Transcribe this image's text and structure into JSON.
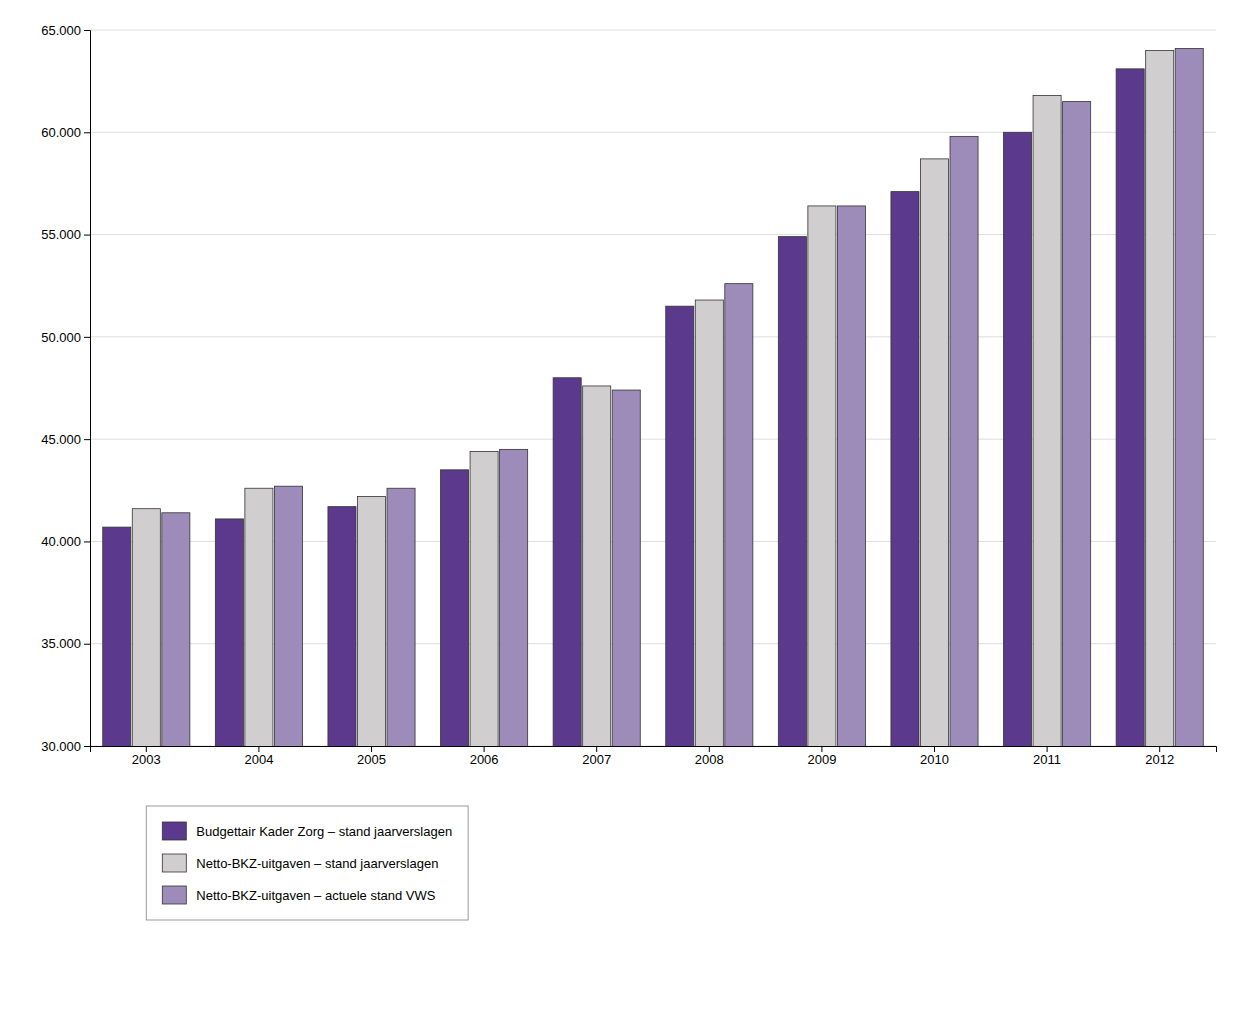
{
  "chart_data": {
    "type": "bar",
    "categories": [
      "2003",
      "2004",
      "2005",
      "2006",
      "2007",
      "2008",
      "2009",
      "2010",
      "2011",
      "2012"
    ],
    "series": [
      {
        "name": "Budgettair Kader Zorg – stand jaarverslagen",
        "color": "#5b3a8e",
        "values": [
          40700,
          41100,
          41700,
          43500,
          48000,
          51500,
          54900,
          57100,
          60000,
          63100
        ]
      },
      {
        "name": "Netto-BKZ-uitgaven – stand jaarverslagen",
        "color": "#d0cece",
        "values": [
          41600,
          42600,
          42200,
          44400,
          47600,
          51800,
          56400,
          58700,
          61800,
          64000
        ]
      },
      {
        "name": "Netto-BKZ-uitgaven – actuele stand VWS",
        "color": "#9d8cba",
        "values": [
          41400,
          42700,
          42600,
          44500,
          47400,
          52600,
          56400,
          59800,
          61500,
          64100
        ]
      }
    ],
    "ylim": [
      30000,
      65000
    ],
    "yticks": [
      {
        "value": 30000,
        "label": "30.000"
      },
      {
        "value": 35000,
        "label": "35.000"
      },
      {
        "value": 40000,
        "label": "40.000"
      },
      {
        "value": 45000,
        "label": "45.000"
      },
      {
        "value": 50000,
        "label": "50.000"
      },
      {
        "value": 55000,
        "label": "55.000"
      },
      {
        "value": 60000,
        "label": "60.000"
      },
      {
        "value": 65000,
        "label": "65.000"
      }
    ],
    "grid": true,
    "legend": "bottom-left"
  }
}
